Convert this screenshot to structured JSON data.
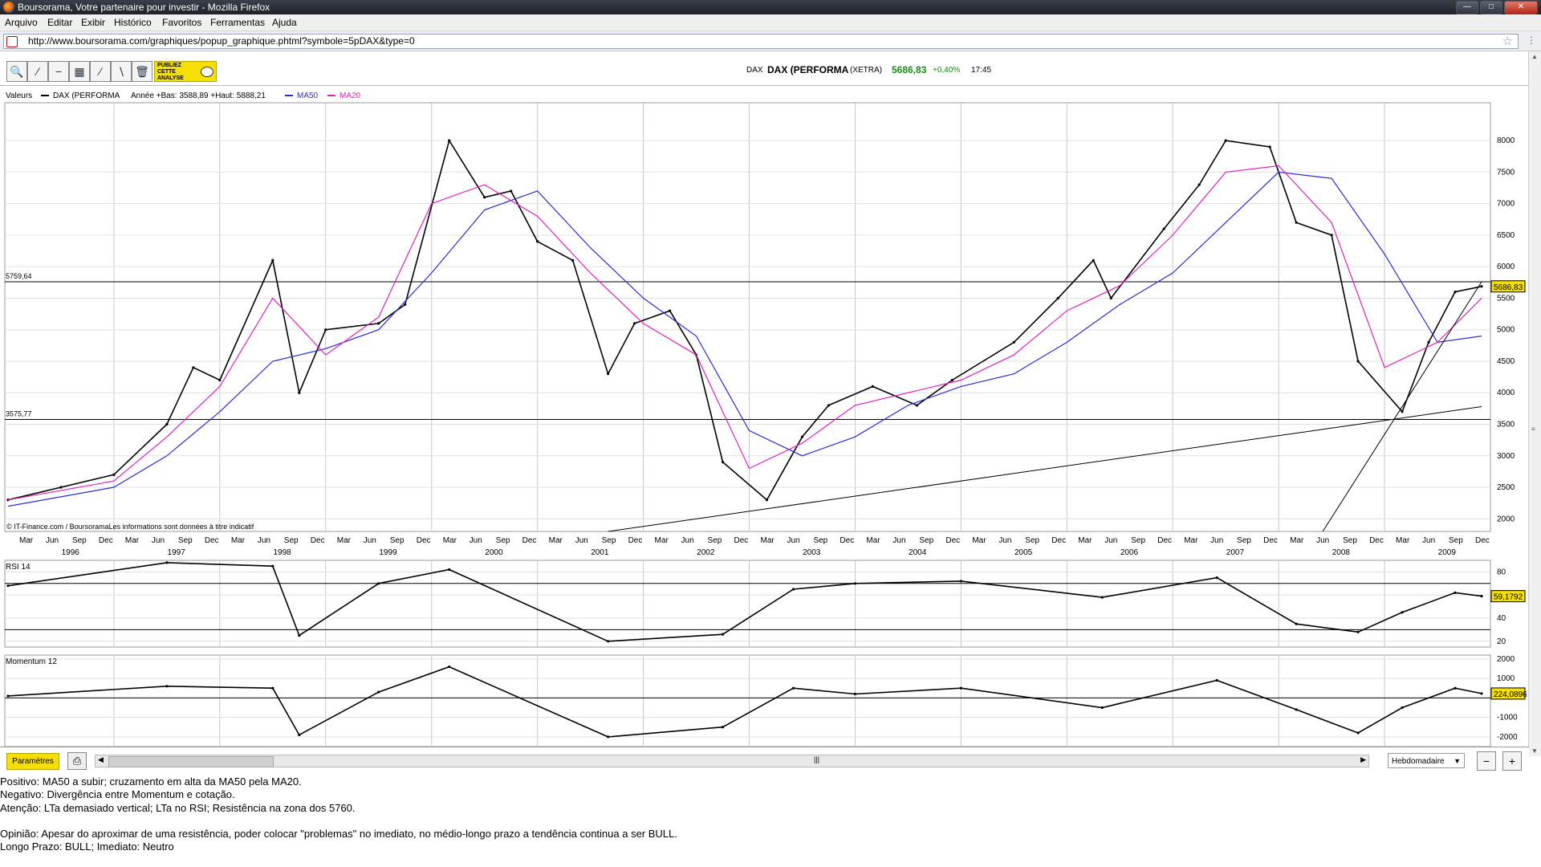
{
  "window": {
    "title": "Boursorama, Votre partenaire pour investir - Mozilla Firefox"
  },
  "menu": [
    "Arquivo",
    "Editar",
    "Exibir",
    "Histórico",
    "Favoritos",
    "Ferramentas",
    "Ajuda"
  ],
  "url": "http://www.boursorama.com/graphiques/popup_graphique.phtml?symbole=5pDAX&type=0",
  "toolbar": {
    "publish_line1": "PUBLIEZ",
    "publish_line2": "CETTE",
    "publish_line3": "ANALYSE"
  },
  "quote": {
    "market": "DAX",
    "name": "DAX (PERFORMA",
    "exchange": "(XETRA)",
    "price": "5686,83",
    "change": "+0,40%",
    "time": "17:45"
  },
  "legend": {
    "valeurs": "Valeurs",
    "series": "DAX (PERFORMA",
    "range": "Année +Bas: 3588,89 +Haut: 5888,21",
    "ma50": "MA50",
    "ma20": "MA20"
  },
  "colors": {
    "ma50": "#2b2bd8",
    "ma20": "#e020c0",
    "price": "#000000",
    "marker": "#f5e000"
  },
  "copyright": "© IT-Finance.com / BoursoramaLes informations sont données à titre indicatif",
  "chart_data": [
    {
      "type": "candlestick",
      "title": "",
      "frequency": "weekly",
      "xlim": [
        "1996-01",
        "2009-12"
      ],
      "ylim": [
        1800,
        8600
      ],
      "yticks": [
        2000,
        2500,
        3000,
        3500,
        4000,
        4500,
        5000,
        5500,
        6000,
        6500,
        7000,
        7500,
        8000
      ],
      "ytick_labels": [
        "2000",
        "2500",
        "3000",
        "3500",
        "4000",
        "4500",
        "5000",
        "5500",
        "6000",
        "6500",
        "7000",
        "7500",
        "8000"
      ],
      "month_labels": [
        "Mar",
        "Jun",
        "Sep",
        "Dec"
      ],
      "year_labels": [
        "1996",
        "1997",
        "1998",
        "1999",
        "2000",
        "2001",
        "2002",
        "2003",
        "2004",
        "2005",
        "2006",
        "2007",
        "2008",
        "2009"
      ],
      "last_value_label": "5686,83",
      "horizontal_lines": [
        {
          "value": 5759.64,
          "label": "5759,64"
        },
        {
          "value": 3575.77,
          "label": "3575,77"
        }
      ],
      "trendlines": [
        {
          "from": [
            "2001-09",
            1800
          ],
          "to": [
            "2009-12",
            3780
          ]
        },
        {
          "from": [
            "2008-06",
            1800
          ],
          "to": [
            "2009-12",
            5760
          ]
        }
      ],
      "series": [
        {
          "name": "DAX (PERFORMA",
          "x": [
            "1996-01",
            "1996-07",
            "1997-01",
            "1997-07",
            "1997-10",
            "1998-01",
            "1998-07",
            "1998-10",
            "1999-01",
            "1999-07",
            "1999-10",
            "2000-03",
            "2000-07",
            "2000-10",
            "2001-01",
            "2001-05",
            "2001-09",
            "2001-12",
            "2002-04",
            "2002-07",
            "2002-10",
            "2003-03",
            "2003-07",
            "2003-10",
            "2004-03",
            "2004-08",
            "2004-12",
            "2005-07",
            "2005-12",
            "2006-04",
            "2006-06",
            "2006-12",
            "2007-04",
            "2007-07",
            "2007-12",
            "2008-03",
            "2008-07",
            "2008-10",
            "2009-03",
            "2009-06",
            "2009-09",
            "2009-12"
          ],
          "values": [
            2300,
            2500,
            2700,
            3500,
            4400,
            4200,
            6100,
            4000,
            5000,
            5100,
            5400,
            8000,
            7100,
            7200,
            6400,
            6100,
            4300,
            5100,
            5300,
            4600,
            2900,
            2300,
            3300,
            3800,
            4100,
            3800,
            4200,
            4800,
            5500,
            6100,
            5500,
            6600,
            7300,
            8000,
            7900,
            6700,
            6500,
            4500,
            3700,
            4800,
            5600,
            5687
          ]
        },
        {
          "name": "MA50",
          "x": [
            "1996-01",
            "1997-01",
            "1997-07",
            "1998-01",
            "1998-07",
            "1999-01",
            "1999-07",
            "2000-01",
            "2000-07",
            "2001-01",
            "2001-07",
            "2002-01",
            "2002-07",
            "2003-01",
            "2003-07",
            "2004-01",
            "2004-07",
            "2005-01",
            "2005-07",
            "2006-01",
            "2006-07",
            "2007-01",
            "2007-07",
            "2008-01",
            "2008-07",
            "2009-01",
            "2009-07",
            "2009-12"
          ],
          "values": [
            2200,
            2500,
            3000,
            3700,
            4500,
            4700,
            5000,
            5900,
            6900,
            7200,
            6300,
            5500,
            4900,
            3400,
            3000,
            3300,
            3800,
            4100,
            4300,
            4800,
            5400,
            5900,
            6700,
            7500,
            7400,
            6200,
            4800,
            4900
          ]
        },
        {
          "name": "MA20",
          "x": [
            "1996-01",
            "1997-01",
            "1997-07",
            "1998-01",
            "1998-07",
            "1999-01",
            "1999-07",
            "2000-01",
            "2000-07",
            "2001-01",
            "2001-07",
            "2002-01",
            "2002-07",
            "2003-01",
            "2003-07",
            "2004-01",
            "2004-07",
            "2005-01",
            "2005-07",
            "2006-01",
            "2006-07",
            "2007-01",
            "2007-07",
            "2008-01",
            "2008-07",
            "2009-01",
            "2009-07",
            "2009-12"
          ],
          "values": [
            2300,
            2600,
            3300,
            4100,
            5500,
            4600,
            5200,
            7000,
            7300,
            6800,
            5900,
            5100,
            4600,
            2800,
            3200,
            3800,
            4000,
            4200,
            4600,
            5300,
            5700,
            6500,
            7500,
            7600,
            6700,
            4400,
            4800,
            5500
          ]
        }
      ]
    },
    {
      "type": "line",
      "title": "RSI 14",
      "ylim": [
        15,
        90
      ],
      "yticks": [
        20,
        40,
        60,
        80
      ],
      "ytick_labels": [
        "20",
        "40",
        "60",
        "80"
      ],
      "horizontal_lines": [
        {
          "value": 70
        },
        {
          "value": 30
        }
      ],
      "last_value_label": "59,1792",
      "series": [
        {
          "name": "RSI 14",
          "x": [
            "1996-01",
            "1997-07",
            "1998-07",
            "1998-10",
            "1999-07",
            "2000-03",
            "2001-09",
            "2002-10",
            "2003-06",
            "2004-01",
            "2005-01",
            "2006-05",
            "2007-06",
            "2008-03",
            "2008-10",
            "2009-03",
            "2009-09",
            "2009-12"
          ],
          "values": [
            68,
            88,
            85,
            25,
            70,
            82,
            20,
            26,
            65,
            70,
            72,
            58,
            75,
            35,
            28,
            45,
            62,
            59
          ]
        }
      ]
    },
    {
      "type": "line",
      "title": "Momentum 12",
      "ylim": [
        -2500,
        2200
      ],
      "yticks": [
        -2000,
        -1000,
        1000,
        2000
      ],
      "ytick_labels": [
        "-2000",
        "-1000",
        "1000",
        "2000"
      ],
      "horizontal_lines": [
        {
          "value": 0
        }
      ],
      "last_value_label": "224,0896",
      "series": [
        {
          "name": "Momentum 12",
          "x": [
            "1996-01",
            "1997-07",
            "1998-07",
            "1998-10",
            "1999-07",
            "2000-03",
            "2001-09",
            "2002-10",
            "2003-06",
            "2004-01",
            "2005-01",
            "2006-05",
            "2007-06",
            "2008-03",
            "2008-10",
            "2009-03",
            "2009-09",
            "2009-12"
          ],
          "values": [
            100,
            600,
            500,
            -1900,
            300,
            1600,
            -2000,
            -1500,
            500,
            200,
            500,
            -500,
            900,
            -600,
            -1800,
            -500,
            500,
            224
          ]
        }
      ]
    }
  ],
  "bottombar": {
    "param_label": "Paramètres",
    "period": "Hebdomadaire"
  },
  "notes": [
    "Positivo: MA50 a subir; cruzamento em alta da MA50 pela MA20.",
    "Negativo: Divergência entre Momentum e cotação.",
    "Atenção: LTa demasiado vertical; LTa no RSI; Resistência na zona dos 5760.",
    " ",
    "Opinião: Apesar do aproximar de uma resistência, poder colocar \"problemas\" no imediato, no médio-longo prazo a tendência continua a ser BULL.",
    "Longo Prazo: BULL; Imediato: Neutro"
  ]
}
